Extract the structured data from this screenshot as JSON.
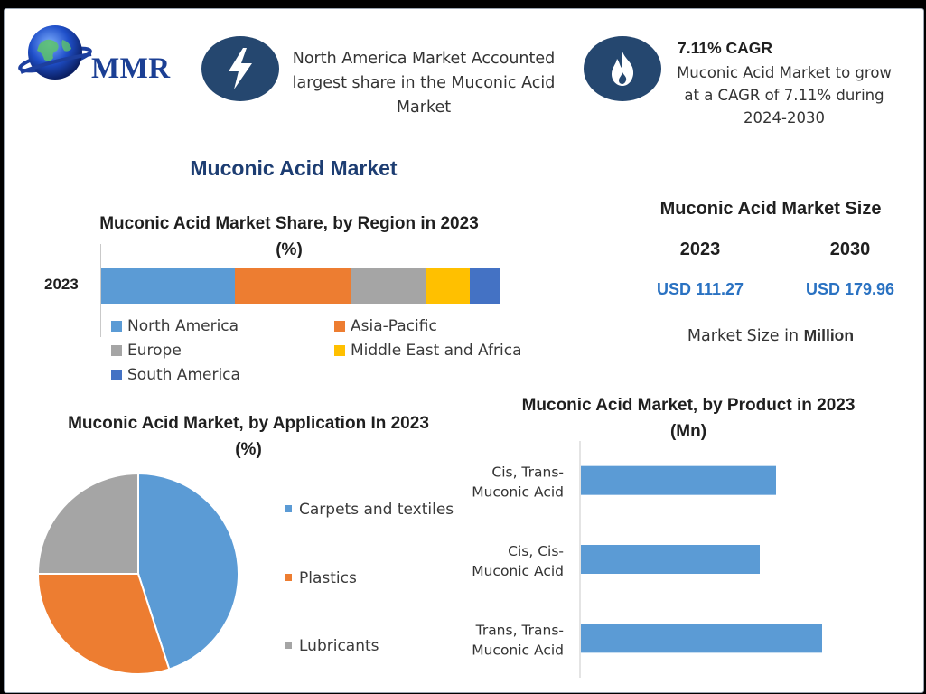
{
  "brand": {
    "logo_text": "MMR"
  },
  "header": {
    "headline": "North America Market Accounted largest share in the Muconic Acid Market",
    "cagr_title": "7.11% CAGR",
    "cagr_text": "Muconic Acid Market to grow at a CAGR of 7.11% during 2024-2030",
    "badge_icons": [
      "lightning-bolt-icon",
      "flame-icon"
    ]
  },
  "title": "Muconic Acid Market",
  "market_size": {
    "title": "Muconic Acid Market Size",
    "year_a": "2023",
    "year_b": "2030",
    "value_a": "USD 111.27",
    "value_b": "USD 179.96",
    "unit_prefix": "Market Size in ",
    "unit_bold": "Million"
  },
  "colors": {
    "blue": "#5b9bd5",
    "orange": "#ed7d31",
    "gray": "#a5a5a5",
    "yellow": "#ffc000",
    "dark_blue": "#4472c4",
    "navy": "#25476f",
    "value_blue": "#2a72c2"
  },
  "chart_data": [
    {
      "type": "bar",
      "stacked": true,
      "orientation": "horizontal",
      "title": "Muconic Acid Market Share, by Region in 2023 (%)",
      "categories": [
        "2023"
      ],
      "series": [
        {
          "name": "North America",
          "values": [
            33.5
          ]
        },
        {
          "name": "Asia-Pacific",
          "values": [
            29
          ]
        },
        {
          "name": "Europe",
          "values": [
            19
          ]
        },
        {
          "name": "Middle East and Africa",
          "values": [
            11
          ]
        },
        {
          "name": "South America",
          "values": [
            7.5
          ]
        }
      ],
      "legend": "bottom"
    },
    {
      "type": "pie",
      "title": "Muconic Acid Market, by Application In 2023 (%)",
      "categories": [
        "Carpets and textiles",
        "Plastics",
        "Lubricants"
      ],
      "values": [
        45,
        30,
        25
      ],
      "legend": "right"
    },
    {
      "type": "bar",
      "orientation": "horizontal",
      "title": "Muconic Acid Market, by Product in 2023 (Mn)",
      "categories": [
        "Cis, Trans-Muconic Acid",
        "Cis, Cis-Muconic Acid",
        "Trans, Trans-Muconic Acid"
      ],
      "category_lines": [
        [
          "Cis, Trans-",
          "Muconic Acid"
        ],
        [
          "Cis, Cis-",
          "Muconic Acid"
        ],
        [
          "Trans, Trans-",
          "Muconic Acid"
        ]
      ],
      "values": [
        36,
        33,
        44.5
      ],
      "xlim": [
        0,
        50
      ]
    }
  ]
}
